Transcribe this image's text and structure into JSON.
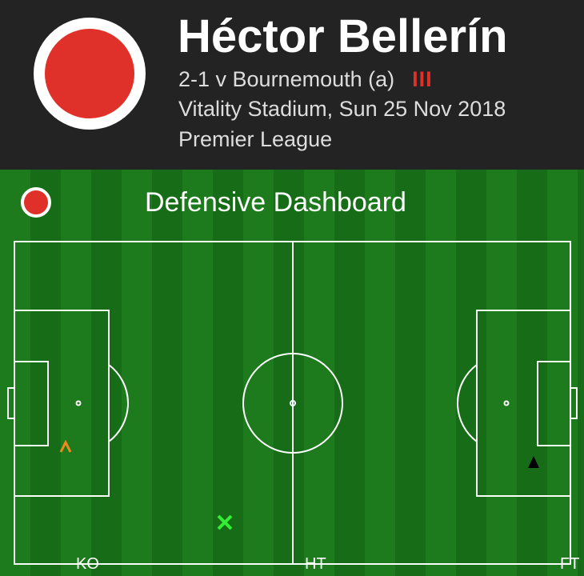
{
  "header": {
    "player_name": "Héctor Bellerín",
    "match": "2-1 v Bournemouth (a)",
    "form_bars": "III",
    "venue_date": "Vitality Stadium, Sun 25 Nov 2018",
    "competition": "Premier League",
    "accent": "#e0302a"
  },
  "dashboard": {
    "title": "Defensive Dashboard"
  },
  "timeline": {
    "ko": "KO",
    "ht": "HT",
    "ft": "FT"
  },
  "markers": [
    {
      "icon": "caret-up-icon",
      "color": "#f08a1c"
    },
    {
      "icon": "cross-icon",
      "color": "#33ee33"
    },
    {
      "icon": "triangle-icon",
      "color": "#000000"
    }
  ]
}
